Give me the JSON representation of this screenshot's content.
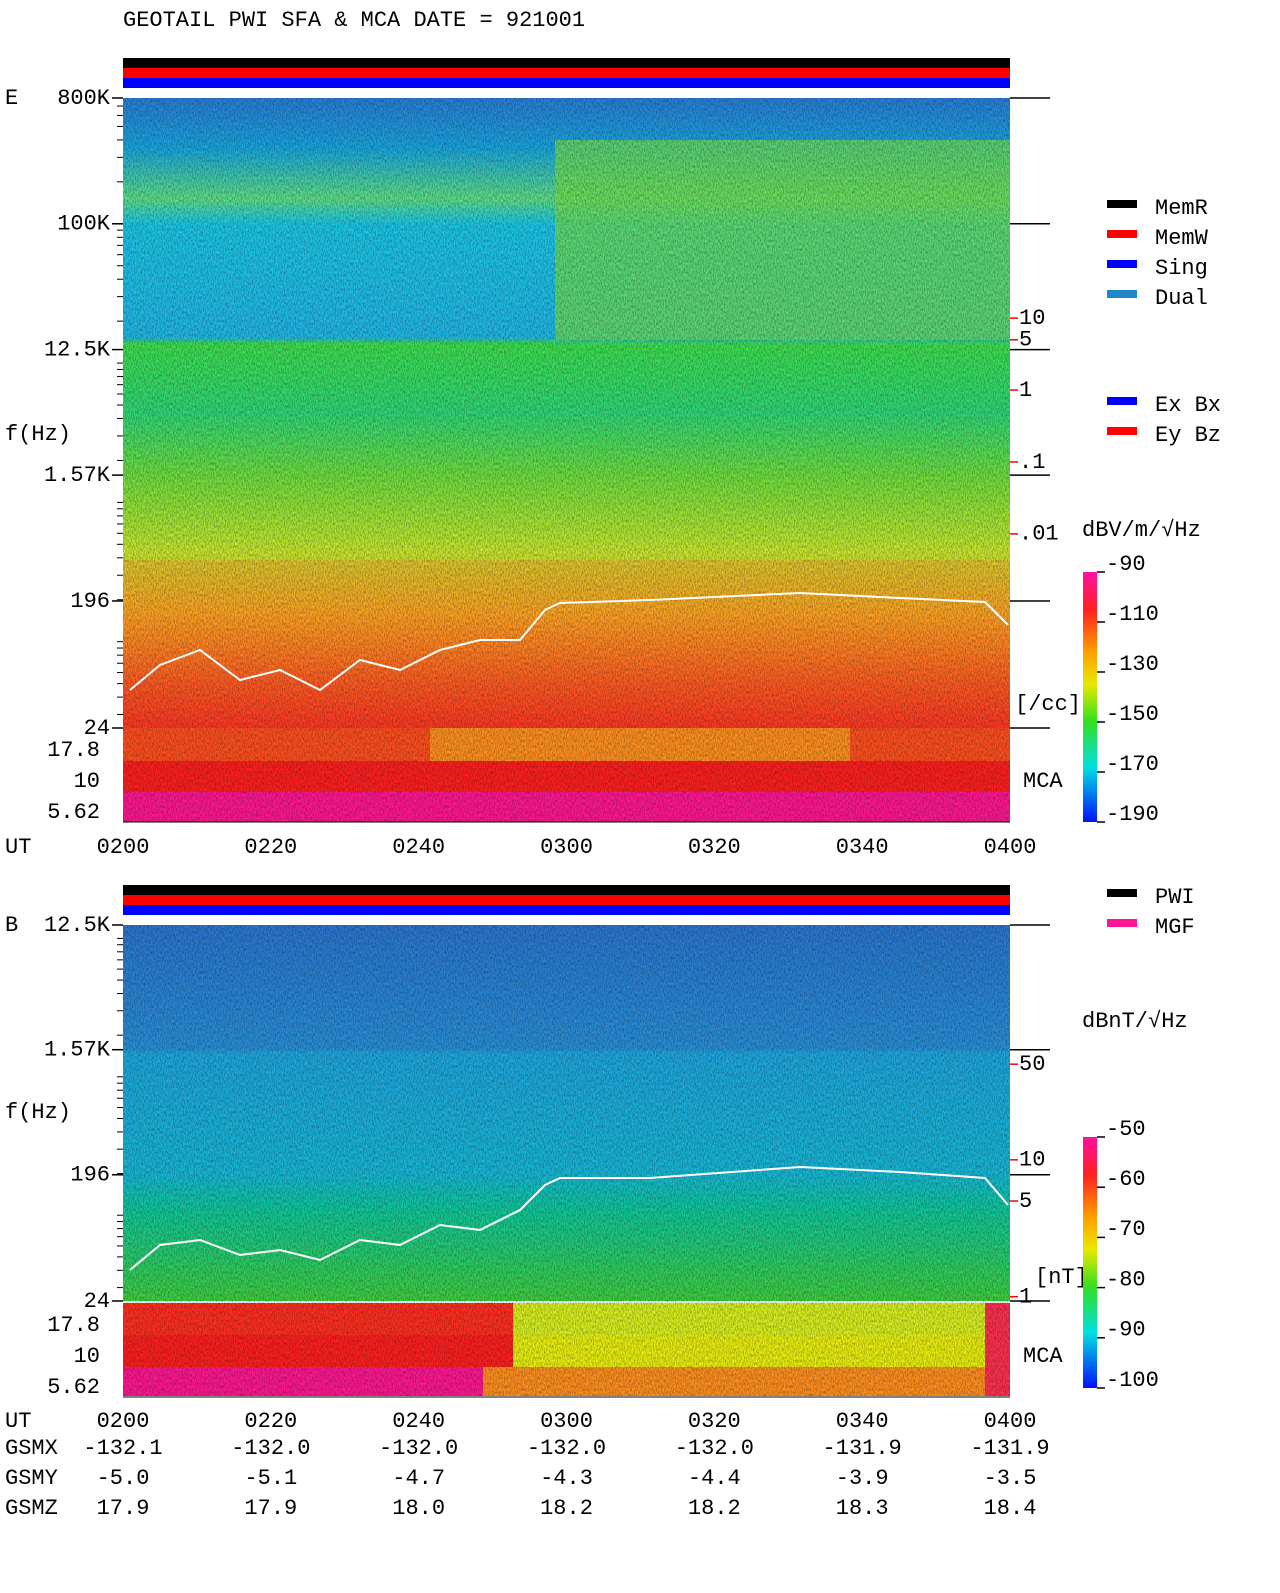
{
  "title": "GEOTAIL  PWI SFA & MCA   DATE = 921001",
  "status_legend": [
    {
      "name": "MemR",
      "color": "#000000"
    },
    {
      "name": "MemW",
      "color": "#ff0000"
    },
    {
      "name": "Sing",
      "color": "#0000ff"
    },
    {
      "name": "Dual",
      "color": "#1e88c8"
    }
  ],
  "time_axis": {
    "label": "UT",
    "ticks": [
      "0200",
      "0220",
      "0240",
      "0300",
      "0320",
      "0340",
      "0400"
    ]
  },
  "panels": [
    {
      "label": "E",
      "axis_label": "f(Hz)",
      "freq_scale": "log",
      "freq_lim": [
        24,
        800000
      ],
      "freq_ticks": [
        {
          "value": 800000,
          "label": "800K"
        },
        {
          "value": 100000,
          "label": "100K"
        },
        {
          "value": 12500,
          "label": "12.5K"
        },
        {
          "value": 1570,
          "label": "1.57K"
        },
        196,
        24
      ],
      "mca_channels": [
        17.8,
        10,
        5.62
      ],
      "mca_label": "MCA",
      "side_axis": {
        "scale": "log",
        "lim": [
          2e-05,
          11500
        ],
        "ticks": [
          10,
          5,
          1,
          {
            "value": 0.1,
            "label": ".1"
          },
          {
            "value": 0.01,
            "label": ".01"
          }
        ],
        "unit": "[/cc]",
        "color": "#ff0000"
      },
      "component_legend": [
        {
          "name": "Ex Bx",
          "color": "#0000ff"
        },
        {
          "name": "Ey Bz",
          "color": "#ff0000"
        }
      ],
      "colorbar": {
        "unit": "dBV/m/√Hz",
        "lim": [
          -190,
          -90
        ],
        "ticks": [
          -90,
          -110,
          -130,
          -150,
          -170,
          -190
        ]
      }
    },
    {
      "label": "B",
      "axis_label": "f(Hz)",
      "freq_scale": "log",
      "freq_lim": [
        24,
        12500
      ],
      "freq_ticks": [
        {
          "value": 12500,
          "label": "12.5K"
        },
        {
          "value": 1570,
          "label": "1.57K"
        },
        196,
        24
      ],
      "mca_channels": [
        17.8,
        10,
        5.62
      ],
      "mca_label": "MCA",
      "side_axis": {
        "scale": "log",
        "lim": [
          0.93,
          520
        ],
        "ticks": [
          50,
          10,
          5,
          1
        ],
        "unit": "[nT]",
        "color": "#ff0000"
      },
      "component_legend": [
        {
          "name": "PWI",
          "color": "#000000"
        },
        {
          "name": "MGF",
          "color": "#ff1493"
        }
      ],
      "colorbar": {
        "unit": "dBnT/√Hz",
        "lim": [
          -100,
          -50
        ],
        "ticks": [
          -50,
          -60,
          -70,
          -80,
          -90,
          -100
        ]
      }
    }
  ],
  "orbit": [
    {
      "label": "GSMX",
      "values": [
        "-132.1",
        "-132.0",
        "-132.0",
        "-132.0",
        "-132.0",
        "-131.9",
        "-131.9"
      ]
    },
    {
      "label": "GSMY",
      "values": [
        "-5.0",
        "-5.1",
        "-4.7",
        "-4.3",
        "-4.4",
        "-3.9",
        "-3.5"
      ]
    },
    {
      "label": "GSMZ",
      "values": [
        "17.9",
        "17.9",
        "18.0",
        "18.2",
        "18.2",
        "18.3",
        "18.4"
      ]
    }
  ]
}
